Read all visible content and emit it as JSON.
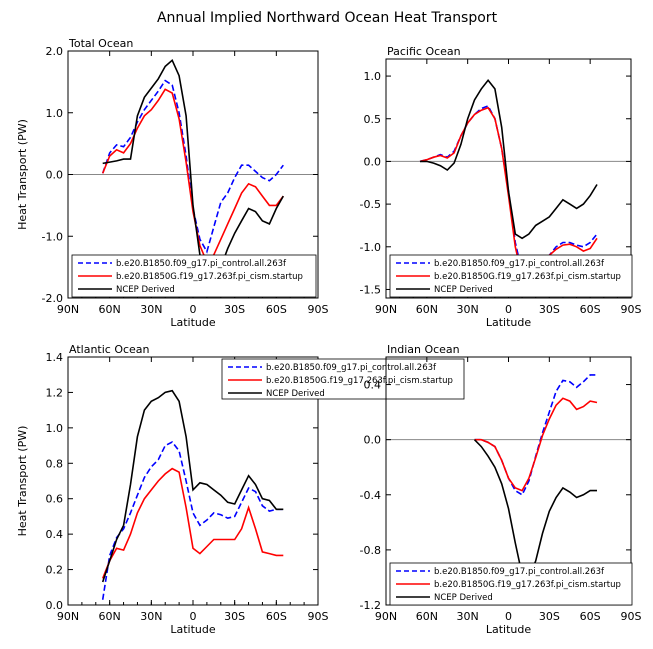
{
  "title": "Annual Implied Northward Ocean Heat Transport",
  "chart_data": [
    {
      "type": "line",
      "title": "Total Ocean",
      "xlabel": "Latitude",
      "ylabel": "Heat Transport (PW)",
      "xlim": [
        90,
        -90
      ],
      "ylim": [
        -2.0,
        2.0
      ],
      "xticks": [
        90,
        60,
        30,
        0,
        -30,
        -60,
        -90
      ],
      "xticklabels": [
        "90N",
        "60N",
        "30N",
        "0",
        "30S",
        "60S",
        "90S"
      ],
      "yticks": [
        -2.0,
        -1.0,
        0.0,
        1.0,
        2.0
      ],
      "yticklabels": [
        "-2.0",
        "-1.0",
        "0.0",
        "1.0",
        "2.0"
      ],
      "legend_position": "lower-right",
      "series": [
        {
          "name": "b.e20.B1850.f09_g17.pi_control.all.263f",
          "color": "#0000ff",
          "style": "dashed",
          "x": [
            65,
            60,
            55,
            50,
            45,
            40,
            35,
            30,
            25,
            20,
            15,
            10,
            5,
            0,
            -5,
            -10,
            -15,
            -20,
            -25,
            -30,
            -35,
            -40,
            -45,
            -50,
            -55,
            -60,
            -65
          ],
          "y": [
            0.02,
            0.35,
            0.48,
            0.45,
            0.6,
            0.85,
            1.05,
            1.2,
            1.35,
            1.52,
            1.45,
            1.0,
            0.3,
            -0.55,
            -1.05,
            -1.25,
            -0.85,
            -0.45,
            -0.3,
            -0.05,
            0.15,
            0.15,
            0.05,
            -0.05,
            -0.1,
            0.0,
            0.15
          ]
        },
        {
          "name": "b.e20.B1850G.f19_g17.263f.pi_cism.startup",
          "color": "#ff0000",
          "style": "solid",
          "x": [
            65,
            60,
            55,
            50,
            45,
            40,
            35,
            30,
            25,
            20,
            15,
            10,
            5,
            0,
            -5,
            -10,
            -15,
            -20,
            -25,
            -30,
            -35,
            -40,
            -45,
            -50,
            -55,
            -60,
            -65
          ],
          "y": [
            0.02,
            0.3,
            0.4,
            0.35,
            0.5,
            0.75,
            0.95,
            1.05,
            1.2,
            1.38,
            1.32,
            0.9,
            0.2,
            -0.6,
            -1.15,
            -1.42,
            -1.3,
            -1.05,
            -0.8,
            -0.55,
            -0.3,
            -0.15,
            -0.2,
            -0.35,
            -0.5,
            -0.5,
            -0.35
          ]
        },
        {
          "name": "NCEP Derived",
          "color": "#000000",
          "style": "solid",
          "x": [
            65,
            60,
            55,
            50,
            45,
            40,
            35,
            30,
            25,
            20,
            15,
            10,
            5,
            0,
            -5,
            -10,
            -15,
            -20,
            -25,
            -30,
            -35,
            -40,
            -45,
            -50,
            -55,
            -60,
            -65
          ],
          "y": [
            0.18,
            0.2,
            0.22,
            0.25,
            0.25,
            0.95,
            1.25,
            1.4,
            1.55,
            1.75,
            1.85,
            1.6,
            0.95,
            -0.5,
            -1.3,
            -1.62,
            -1.65,
            -1.5,
            -1.2,
            -0.95,
            -0.75,
            -0.55,
            -0.6,
            -0.75,
            -0.8,
            -0.55,
            -0.35
          ]
        }
      ]
    },
    {
      "type": "line",
      "title": "Pacific Ocean",
      "xlabel": "Latitude",
      "ylabel": "",
      "xlim": [
        90,
        -90
      ],
      "ylim": [
        -1.6,
        1.2
      ],
      "xticks": [
        90,
        60,
        30,
        0,
        -30,
        -60,
        -90
      ],
      "xticklabels": [
        "90N",
        "60N",
        "30N",
        "0",
        "30S",
        "60S",
        "90S"
      ],
      "yticks": [
        -1.5,
        -1.0,
        -0.5,
        0.0,
        0.5,
        1.0
      ],
      "yticklabels": [
        "-1.5",
        "-1.0",
        "-0.5",
        "0.0",
        "0.5",
        "1.0"
      ],
      "legend_position": "lower-right",
      "series": [
        {
          "name": "b.e20.B1850.f09_g17.pi_control.all.263f",
          "color": "#0000ff",
          "style": "dashed",
          "x": [
            65,
            60,
            55,
            50,
            45,
            40,
            35,
            30,
            25,
            20,
            15,
            10,
            5,
            0,
            -5,
            -10,
            -15,
            -20,
            -25,
            -30,
            -35,
            -40,
            -45,
            -50,
            -55,
            -60,
            -65
          ],
          "y": [
            0.0,
            0.02,
            0.05,
            0.08,
            0.05,
            0.12,
            0.3,
            0.45,
            0.55,
            0.62,
            0.65,
            0.5,
            0.15,
            -0.35,
            -0.95,
            -1.3,
            -1.25,
            -1.2,
            -1.15,
            -1.1,
            -1.0,
            -0.95,
            -0.95,
            -0.98,
            -1.0,
            -0.95,
            -0.85
          ]
        },
        {
          "name": "b.e20.B1850G.f19_g17.263f.pi_cism.startup",
          "color": "#ff0000",
          "style": "solid",
          "x": [
            65,
            60,
            55,
            50,
            45,
            40,
            35,
            30,
            25,
            20,
            15,
            10,
            5,
            0,
            -5,
            -10,
            -15,
            -20,
            -25,
            -30,
            -35,
            -40,
            -45,
            -50,
            -55,
            -60,
            -65
          ],
          "y": [
            0.0,
            0.02,
            0.05,
            0.07,
            0.04,
            0.1,
            0.3,
            0.45,
            0.55,
            0.6,
            0.63,
            0.5,
            0.15,
            -0.4,
            -1.0,
            -1.35,
            -1.32,
            -1.25,
            -1.18,
            -1.1,
            -1.03,
            -0.98,
            -0.97,
            -1.0,
            -1.05,
            -1.02,
            -0.9
          ]
        },
        {
          "name": "NCEP Derived",
          "color": "#000000",
          "style": "solid",
          "x": [
            65,
            60,
            55,
            50,
            45,
            40,
            35,
            30,
            25,
            20,
            15,
            10,
            5,
            0,
            -5,
            -10,
            -15,
            -20,
            -25,
            -30,
            -35,
            -40,
            -45,
            -50,
            -55,
            -60,
            -65
          ],
          "y": [
            0.0,
            0.0,
            -0.02,
            -0.05,
            -0.1,
            -0.02,
            0.2,
            0.5,
            0.72,
            0.85,
            0.95,
            0.85,
            0.4,
            -0.35,
            -0.85,
            -0.9,
            -0.85,
            -0.75,
            -0.7,
            -0.65,
            -0.55,
            -0.45,
            -0.5,
            -0.55,
            -0.5,
            -0.4,
            -0.27
          ]
        }
      ]
    },
    {
      "type": "line",
      "title": "Atlantic Ocean",
      "xlabel": "Latitude",
      "ylabel": "Heat Transport (PW)",
      "xlim": [
        90,
        -90
      ],
      "ylim": [
        0.0,
        1.4
      ],
      "xticks": [
        90,
        60,
        30,
        0,
        -30,
        -60,
        -90
      ],
      "xticklabels": [
        "90N",
        "60N",
        "30N",
        "0",
        "30S",
        "60S",
        "90S"
      ],
      "yticks": [
        0.0,
        0.2,
        0.4,
        0.6,
        0.8,
        1.0,
        1.2,
        1.4
      ],
      "yticklabels": [
        "0.0",
        "0.2",
        "0.4",
        "0.6",
        "0.8",
        "1.0",
        "1.2",
        "1.4"
      ],
      "legend_position": "top-right",
      "series": [
        {
          "name": "b.e20.B1850.f09_g17.pi_control.all.263f",
          "color": "#0000ff",
          "style": "dashed",
          "x": [
            65,
            60,
            55,
            50,
            45,
            40,
            35,
            30,
            25,
            20,
            15,
            10,
            5,
            0,
            -5,
            -10,
            -15,
            -20,
            -25,
            -30,
            -35,
            -40,
            -45,
            -50,
            -55,
            -60,
            -65
          ],
          "y": [
            0.03,
            0.28,
            0.38,
            0.43,
            0.52,
            0.62,
            0.72,
            0.78,
            0.82,
            0.9,
            0.92,
            0.87,
            0.7,
            0.52,
            0.45,
            0.48,
            0.52,
            0.51,
            0.49,
            0.5,
            0.58,
            0.66,
            0.64,
            0.56,
            0.53,
            0.54,
            0.54
          ]
        },
        {
          "name": "b.e20.B1850G.f19_g17.263f.pi_cism.startup",
          "color": "#ff0000",
          "style": "solid",
          "x": [
            65,
            60,
            55,
            50,
            45,
            40,
            35,
            30,
            25,
            20,
            15,
            10,
            5,
            0,
            -5,
            -10,
            -15,
            -20,
            -25,
            -30,
            -35,
            -40,
            -45,
            -50,
            -55,
            -60,
            -65
          ],
          "y": [
            0.15,
            0.25,
            0.32,
            0.31,
            0.4,
            0.52,
            0.6,
            0.65,
            0.7,
            0.74,
            0.77,
            0.75,
            0.55,
            0.32,
            0.29,
            0.33,
            0.37,
            0.37,
            0.37,
            0.37,
            0.43,
            0.55,
            0.43,
            0.3,
            0.29,
            0.28,
            0.28
          ]
        },
        {
          "name": "NCEP Derived",
          "color": "#000000",
          "style": "solid",
          "x": [
            65,
            60,
            55,
            50,
            45,
            40,
            35,
            30,
            25,
            20,
            15,
            10,
            5,
            0,
            -5,
            -10,
            -15,
            -20,
            -25,
            -30,
            -35,
            -40,
            -45,
            -50,
            -55,
            -60,
            -65
          ],
          "y": [
            0.13,
            0.25,
            0.37,
            0.45,
            0.68,
            0.95,
            1.1,
            1.15,
            1.17,
            1.2,
            1.21,
            1.15,
            0.95,
            0.65,
            0.69,
            0.68,
            0.65,
            0.62,
            0.58,
            0.57,
            0.65,
            0.73,
            0.68,
            0.6,
            0.59,
            0.54,
            0.54
          ]
        }
      ]
    },
    {
      "type": "line",
      "title": "Indian Ocean",
      "xlabel": "Latitude",
      "ylabel": "",
      "xlim": [
        90,
        -90
      ],
      "ylim": [
        -1.2,
        0.6
      ],
      "xticks": [
        90,
        60,
        30,
        0,
        -30,
        -60,
        -90
      ],
      "xticklabels": [
        "90N",
        "60N",
        "30N",
        "0",
        "30S",
        "60S",
        "90S"
      ],
      "yticks": [
        -1.2,
        -0.8,
        -0.4,
        0.0,
        0.4
      ],
      "yticklabels": [
        "-1.2",
        "-0.8",
        "-0.4",
        "0.0",
        "0.4"
      ],
      "legend_position": "lower-right",
      "series": [
        {
          "name": "b.e20.B1850.f09_g17.pi_control.all.263f",
          "color": "#0000ff",
          "style": "dashed",
          "x": [
            25,
            20,
            15,
            10,
            5,
            0,
            -5,
            -10,
            -15,
            -20,
            -25,
            -30,
            -35,
            -40,
            -45,
            -50,
            -55,
            -60,
            -65
          ],
          "y": [
            0.0,
            0.0,
            -0.02,
            -0.05,
            -0.15,
            -0.28,
            -0.37,
            -0.4,
            -0.3,
            -0.12,
            0.05,
            0.2,
            0.35,
            0.43,
            0.42,
            0.38,
            0.42,
            0.47,
            0.47
          ]
        },
        {
          "name": "b.e20.B1850G.f19_g17.263f.pi_cism.startup",
          "color": "#ff0000",
          "style": "solid",
          "x": [
            25,
            20,
            15,
            10,
            5,
            0,
            -5,
            -10,
            -15,
            -20,
            -25,
            -30,
            -35,
            -40,
            -45,
            -50,
            -55,
            -60,
            -65
          ],
          "y": [
            0.0,
            0.0,
            -0.02,
            -0.05,
            -0.15,
            -0.28,
            -0.35,
            -0.37,
            -0.28,
            -0.13,
            0.03,
            0.15,
            0.25,
            0.3,
            0.28,
            0.22,
            0.24,
            0.28,
            0.27
          ]
        },
        {
          "name": "NCEP Derived",
          "color": "#000000",
          "style": "solid",
          "x": [
            25,
            20,
            15,
            10,
            5,
            0,
            -5,
            -10,
            -15,
            -20,
            -25,
            -30,
            -35,
            -40,
            -45,
            -50,
            -55,
            -60,
            -65
          ],
          "y": [
            0.0,
            -0.05,
            -0.12,
            -0.2,
            -0.32,
            -0.5,
            -0.75,
            -0.98,
            -1.0,
            -0.88,
            -0.68,
            -0.52,
            -0.42,
            -0.35,
            -0.38,
            -0.42,
            -0.4,
            -0.37,
            -0.37
          ]
        }
      ]
    }
  ]
}
